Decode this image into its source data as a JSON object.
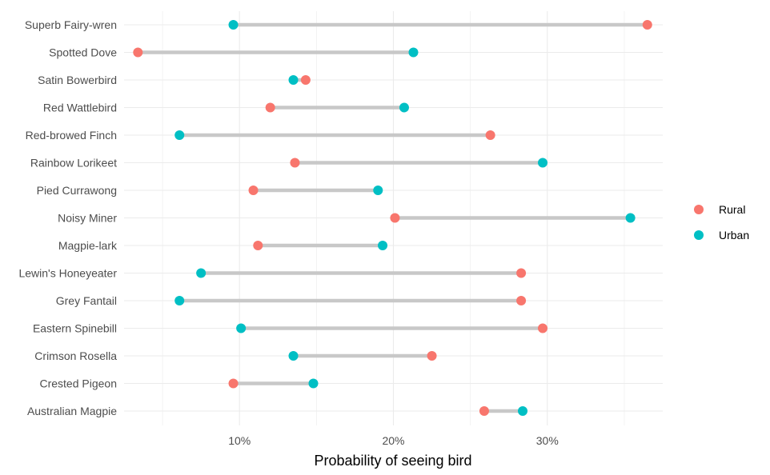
{
  "chart_data": {
    "type": "dumbbell",
    "xlabel": "Probability of seeing bird",
    "ylabel": "",
    "xlim": [
      2.5,
      37.5
    ],
    "x_ticks": [
      10,
      20,
      30
    ],
    "x_tick_labels": [
      "10%",
      "20%",
      "30%"
    ],
    "grid": true,
    "legend_position": "right",
    "categories": [
      "Superb Fairy-wren",
      "Spotted Dove",
      "Satin Bowerbird",
      "Red Wattlebird",
      "Red-browed Finch",
      "Rainbow Lorikeet",
      "Pied Currawong",
      "Noisy Miner",
      "Magpie-lark",
      "Lewin's Honeyeater",
      "Grey Fantail",
      "Eastern Spinebill",
      "Crimson Rosella",
      "Crested Pigeon",
      "Australian Magpie"
    ],
    "series": [
      {
        "name": "Rural",
        "color": "#F8766D",
        "values": [
          36.5,
          3.4,
          14.3,
          12.0,
          26.3,
          13.6,
          10.9,
          20.1,
          11.2,
          28.3,
          28.3,
          29.7,
          22.5,
          9.6,
          25.9
        ]
      },
      {
        "name": "Urban",
        "color": "#00BFC4",
        "values": [
          9.6,
          21.3,
          13.5,
          20.7,
          6.1,
          29.7,
          19.0,
          35.4,
          19.3,
          7.5,
          6.1,
          10.1,
          13.5,
          14.8,
          28.4
        ]
      }
    ],
    "segment_color": "#C8C8C8"
  }
}
